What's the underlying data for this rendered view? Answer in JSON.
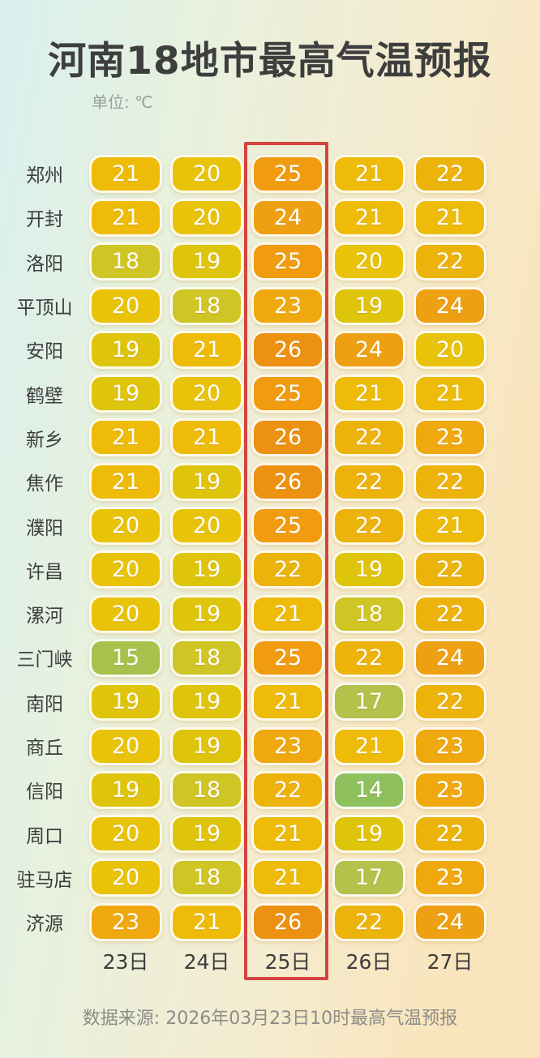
{
  "title": "河南18地市最高气温预报",
  "unit_label": "单位: ℃",
  "source": "数据来源: 2026年03月23日10时最高气温预报",
  "highlight": {
    "column": "25日",
    "border_color": "#d34340"
  },
  "colors": {
    "title_text": "#3e3e3e",
    "label_text": "#3c3c3c",
    "muted_text": "#8c8c88",
    "cell_text": "#ffffff",
    "bg_gradient_start": "#d9f0ef",
    "bg_gradient_end": "#f8e3ba"
  },
  "chart_data": {
    "type": "heatmap",
    "title": "河南18地市最高气温预报",
    "unit": "℃",
    "columns": [
      "23日",
      "24日",
      "25日",
      "26日",
      "27日"
    ],
    "highlighted_column": "25日",
    "rows": [
      {
        "city": "郑州",
        "values": [
          21,
          20,
          25,
          21,
          22
        ]
      },
      {
        "city": "开封",
        "values": [
          21,
          20,
          24,
          21,
          21
        ]
      },
      {
        "city": "洛阳",
        "values": [
          18,
          19,
          25,
          20,
          22
        ]
      },
      {
        "city": "平顶山",
        "values": [
          20,
          18,
          23,
          19,
          24
        ]
      },
      {
        "city": "安阳",
        "values": [
          19,
          21,
          26,
          24,
          20
        ]
      },
      {
        "city": "鹤壁",
        "values": [
          19,
          20,
          25,
          21,
          21
        ]
      },
      {
        "city": "新乡",
        "values": [
          21,
          21,
          26,
          22,
          23
        ]
      },
      {
        "city": "焦作",
        "values": [
          21,
          19,
          26,
          22,
          22
        ]
      },
      {
        "city": "濮阳",
        "values": [
          20,
          20,
          25,
          22,
          21
        ]
      },
      {
        "city": "许昌",
        "values": [
          20,
          19,
          22,
          19,
          22
        ]
      },
      {
        "city": "漯河",
        "values": [
          20,
          19,
          21,
          18,
          22
        ]
      },
      {
        "city": "三门峡",
        "values": [
          15,
          18,
          25,
          22,
          24
        ]
      },
      {
        "city": "南阳",
        "values": [
          19,
          19,
          21,
          17,
          22
        ]
      },
      {
        "city": "商丘",
        "values": [
          20,
          19,
          23,
          21,
          23
        ]
      },
      {
        "city": "信阳",
        "values": [
          19,
          18,
          22,
          14,
          23
        ]
      },
      {
        "city": "周口",
        "values": [
          20,
          19,
          21,
          19,
          22
        ]
      },
      {
        "city": "驻马店",
        "values": [
          20,
          18,
          21,
          17,
          23
        ]
      },
      {
        "city": "济源",
        "values": [
          23,
          21,
          26,
          22,
          24
        ]
      }
    ],
    "color_scale": {
      "14": "#8ec05e",
      "15": "#a7c14c",
      "17": "#b2c24a",
      "18": "#cfc524",
      "19": "#dfc40c",
      "20": "#e9c30a",
      "21": "#edbb08",
      "22": "#ecb30b",
      "23": "#efa90f",
      "24": "#eda012",
      "25": "#f09c0e",
      "26": "#ec9110"
    },
    "source": "数据来源: 2026年03月23日10时最高气温预报"
  }
}
